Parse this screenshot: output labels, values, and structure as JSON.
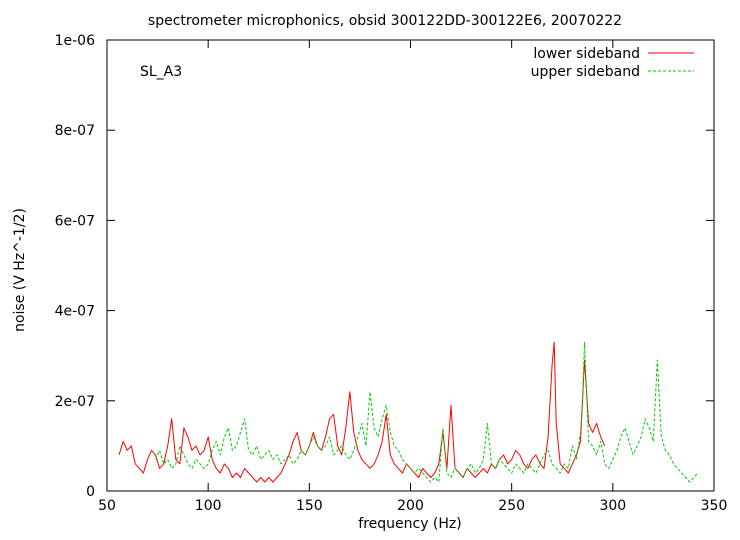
{
  "chart_data": {
    "type": "line",
    "title": "spectrometer microphonics, obsid 300122DD-300122E6, 20070222",
    "xlabel": "frequency (Hz)",
    "ylabel": "noise (V Hz^-1/2)",
    "annotation": "SL_A3",
    "xlim": [
      50,
      350
    ],
    "ylim": [
      0,
      1e-06
    ],
    "x_ticks": [
      50,
      100,
      150,
      200,
      250,
      300,
      350
    ],
    "x_tick_labels": [
      "50",
      "100",
      "150",
      "200",
      "250",
      "300",
      "350"
    ],
    "y_ticks": [
      0,
      2e-07,
      4e-07,
      6e-07,
      8e-07,
      1e-06
    ],
    "y_tick_labels": [
      "0",
      "2e-07",
      "4e-07",
      "6e-07",
      "8e-07",
      "1e-06"
    ],
    "legend_position": "top-right",
    "series": [
      {
        "name": "lower sideband",
        "color": "#ff0000",
        "dash": "solid",
        "x": [
          56,
          58,
          60,
          62,
          64,
          66,
          68,
          70,
          72,
          74,
          76,
          78,
          80,
          82,
          84,
          86,
          88,
          90,
          92,
          94,
          96,
          98,
          100,
          102,
          104,
          106,
          108,
          110,
          112,
          114,
          116,
          118,
          120,
          122,
          124,
          126,
          128,
          130,
          132,
          134,
          136,
          138,
          140,
          142,
          144,
          146,
          148,
          150,
          152,
          154,
          156,
          158,
          160,
          162,
          164,
          166,
          168,
          170,
          172,
          174,
          176,
          178,
          180,
          182,
          184,
          186,
          188,
          190,
          192,
          194,
          196,
          198,
          200,
          202,
          204,
          206,
          208,
          210,
          212,
          214,
          216,
          218,
          220,
          222,
          224,
          226,
          228,
          230,
          232,
          234,
          236,
          238,
          240,
          242,
          244,
          246,
          248,
          250,
          252,
          254,
          256,
          258,
          260,
          262,
          264,
          266,
          268,
          270,
          271,
          272,
          274,
          276,
          278,
          280,
          282,
          284,
          286,
          288,
          290,
          292,
          294,
          296
        ],
        "values": [
          8e-08,
          1.1e-07,
          9e-08,
          1e-07,
          6e-08,
          5e-08,
          4e-08,
          7e-08,
          9e-08,
          8e-08,
          5e-08,
          6e-08,
          1e-07,
          1.6e-07,
          7e-08,
          6e-08,
          1.4e-07,
          1.2e-07,
          9e-08,
          1e-07,
          8e-08,
          9e-08,
          1.2e-07,
          7e-08,
          5e-08,
          4e-08,
          6e-08,
          5e-08,
          3e-08,
          4e-08,
          3e-08,
          5e-08,
          4e-08,
          3e-08,
          2e-08,
          3e-08,
          2e-08,
          3e-08,
          2e-08,
          3e-08,
          4e-08,
          6e-08,
          8e-08,
          1.1e-07,
          1.3e-07,
          9e-08,
          8e-08,
          1e-07,
          1.3e-07,
          1e-07,
          9e-08,
          1.2e-07,
          1.6e-07,
          1.7e-07,
          1e-07,
          8e-08,
          1.4e-07,
          2.2e-07,
          1.3e-07,
          9e-08,
          7e-08,
          6e-08,
          5e-08,
          6e-08,
          8e-08,
          1.1e-07,
          1.7e-07,
          8e-08,
          6e-08,
          5e-08,
          4e-08,
          6e-08,
          5e-08,
          4e-08,
          3e-08,
          5e-08,
          4e-08,
          3e-08,
          4e-08,
          6e-08,
          1.3e-07,
          5e-08,
          1.9e-07,
          5e-08,
          4e-08,
          3e-08,
          5e-08,
          4e-08,
          3e-08,
          4e-08,
          5e-08,
          4e-08,
          6e-08,
          5e-08,
          7e-08,
          8e-08,
          6e-08,
          7e-08,
          9e-08,
          8e-08,
          6e-08,
          5e-08,
          7e-08,
          8e-08,
          6e-08,
          5e-08,
          1.2e-07,
          2.8e-07,
          3.3e-07,
          1.5e-07,
          6e-08,
          5e-08,
          4e-08,
          6e-08,
          8e-08,
          1.1e-07,
          2.9e-07,
          1.5e-07,
          1.3e-07,
          1.5e-07,
          1.2e-07,
          1e-07
        ]
      },
      {
        "name": "upper sideband",
        "color": "#00cc00",
        "dash": "dashed",
        "x": [
          74,
          76,
          78,
          80,
          82,
          84,
          86,
          88,
          90,
          92,
          94,
          96,
          98,
          100,
          102,
          104,
          106,
          108,
          110,
          112,
          114,
          116,
          118,
          120,
          122,
          124,
          126,
          128,
          130,
          132,
          134,
          136,
          138,
          140,
          142,
          144,
          146,
          148,
          150,
          152,
          154,
          156,
          158,
          160,
          162,
          164,
          166,
          168,
          170,
          172,
          174,
          176,
          178,
          180,
          182,
          184,
          186,
          188,
          190,
          192,
          194,
          196,
          198,
          200,
          202,
          204,
          206,
          208,
          210,
          212,
          214,
          216,
          218,
          220,
          222,
          224,
          226,
          228,
          230,
          232,
          234,
          236,
          238,
          240,
          242,
          244,
          246,
          248,
          250,
          252,
          254,
          256,
          258,
          260,
          262,
          264,
          266,
          268,
          270,
          272,
          274,
          276,
          278,
          280,
          282,
          284,
          285,
          286,
          288,
          290,
          292,
          294,
          296,
          298,
          300,
          302,
          304,
          306,
          308,
          310,
          312,
          314,
          316,
          318,
          320,
          322,
          324,
          326,
          328,
          330,
          332,
          334,
          336,
          338,
          340,
          342
        ],
        "values": [
          7e-08,
          9e-08,
          6e-08,
          7e-08,
          5e-08,
          6e-08,
          1e-07,
          8e-08,
          6e-08,
          5e-08,
          7e-08,
          6e-08,
          5e-08,
          6e-08,
          9e-08,
          1.1e-07,
          8e-08,
          1.2e-07,
          1.4e-07,
          9e-08,
          1e-07,
          1.3e-07,
          1.6e-07,
          9e-08,
          8e-08,
          1e-07,
          7e-08,
          8e-08,
          9e-08,
          7e-08,
          8e-08,
          6e-08,
          7e-08,
          8e-08,
          6e-08,
          7e-08,
          9e-08,
          8e-08,
          1e-07,
          1.2e-07,
          1e-07,
          9e-08,
          1e-07,
          1.2e-07,
          8e-08,
          9e-08,
          1e-07,
          8e-08,
          7e-08,
          9e-08,
          1.2e-07,
          1.5e-07,
          1e-07,
          2.2e-07,
          1.4e-07,
          1.2e-07,
          1.6e-07,
          1.9e-07,
          1.3e-07,
          1e-07,
          9e-08,
          7e-08,
          6e-08,
          5e-08,
          4e-08,
          5e-08,
          4e-08,
          3e-08,
          2e-08,
          3e-08,
          2e-08,
          1.4e-07,
          4e-08,
          3e-08,
          5e-08,
          4e-08,
          3e-08,
          5e-08,
          6e-08,
          4e-08,
          5e-08,
          7e-08,
          1.5e-07,
          6e-08,
          5e-08,
          7e-08,
          6e-08,
          5e-08,
          4e-08,
          6e-08,
          5e-08,
          4e-08,
          6e-08,
          5e-08,
          4e-08,
          6e-08,
          8e-08,
          9e-08,
          6e-08,
          5e-08,
          4e-08,
          6e-08,
          5e-08,
          1e-07,
          7e-08,
          1.3e-07,
          2e-07,
          3.3e-07,
          1.1e-07,
          1e-07,
          8e-08,
          1.1e-07,
          6e-08,
          5e-08,
          7e-08,
          9e-08,
          1.2e-07,
          1.4e-07,
          1.1e-07,
          8e-08,
          1e-07,
          1.2e-07,
          1.6e-07,
          1.4e-07,
          1.1e-07,
          2.9e-07,
          1.2e-07,
          9e-08,
          8e-08,
          6e-08,
          5e-08,
          4e-08,
          3e-08,
          2e-08,
          3e-08,
          4e-08
        ]
      }
    ]
  }
}
